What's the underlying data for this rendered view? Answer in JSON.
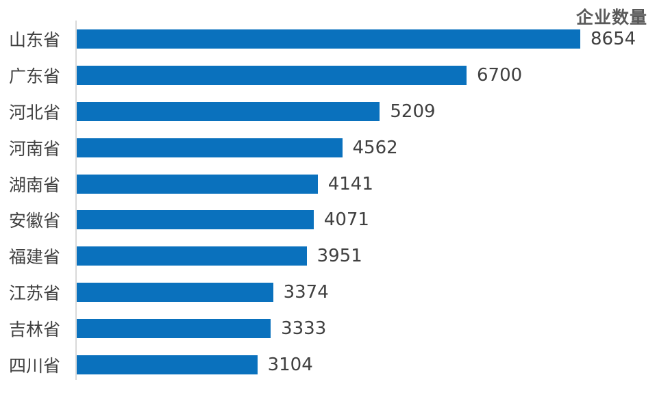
{
  "chart_data": {
    "type": "bar",
    "orientation": "horizontal",
    "title": "企业数量",
    "series_name": "企业数量",
    "categories": [
      "山东省",
      "广东省",
      "河北省",
      "河南省",
      "湖南省",
      "安徽省",
      "福建省",
      "江苏省",
      "吉林省",
      "四川省"
    ],
    "values": [
      8654,
      6700,
      5209,
      4562,
      4141,
      4071,
      3951,
      3374,
      3333,
      3104
    ],
    "data_labels": true,
    "grid": false,
    "legend_position": "top-right",
    "xlim": [
      0,
      9000
    ],
    "bar_color": "#0a71bd",
    "axis_line_color": "#d9d9d9",
    "title_color": "#595959",
    "category_label_color": "#404040",
    "value_label_color": "#404040",
    "background_color": "#ffffff"
  }
}
